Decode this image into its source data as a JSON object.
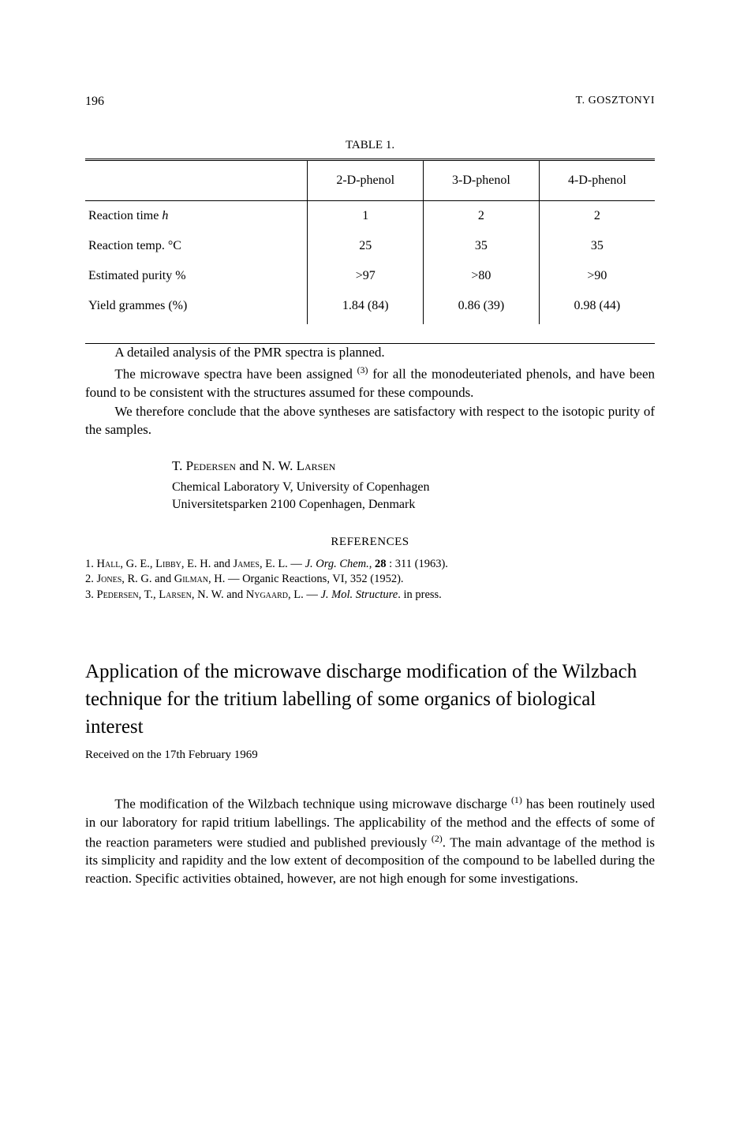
{
  "header": {
    "page_number": "196",
    "author": "T. GOSZTONYI"
  },
  "table": {
    "caption_prefix": "TABLE",
    "caption_number": "1.",
    "columns": [
      "",
      "2-D-phenol",
      "3-D-phenol",
      "4-D-phenol"
    ],
    "rows": [
      {
        "label_html": "Reaction time <span class='italic'>h</span>",
        "c1": "1",
        "c2": "2",
        "c3": "2"
      },
      {
        "label_html": "Reaction temp. °C",
        "c1": "25",
        "c2": "35",
        "c3": "35"
      },
      {
        "label_html": "Estimated purity %",
        "c1": ">97",
        "c2": ">80",
        "c3": ">90"
      },
      {
        "label_html": "Yield grammes (%)",
        "c1": "1.84 (84)",
        "c2": "0.86 (39)",
        "c3": "0.98 (44)"
      }
    ]
  },
  "body": {
    "p1": "A detailed analysis of the PMR spectra is planned.",
    "p2_html": "The microwave spectra have been assigned <sup>(3)</sup> for all the monodeuteriated phenols, and have been found to be consistent with the structures assumed for these compounds.",
    "p3": "We therefore conclude that the above syntheses are satisfactory with respect to the isotopic purity of the samples."
  },
  "authors": {
    "names_html": "T. <span class='sc'>Pedersen</span> and N. W. <span class='sc'>Larsen</span>",
    "affil1": "Chemical Laboratory V, University of Copenhagen",
    "affil2": "Universitetsparken 2100 Copenhagen, Denmark"
  },
  "references": {
    "heading": "REFERENCES",
    "items": [
      "1. <span class='sc'>Hall</span>, G. E., <span class='sc'>Libby</span>, E. H. and <span class='sc'>James</span>, E. L. — <span class='italic'>J. Org. Chem.</span>, <b>28</b> : 311 (1963).",
      "2. <span class='sc'>Jones</span>, R. G. and <span class='sc'>Gilman</span>, H. — Organic Reactions, VI, 352 (1952).",
      "3. <span class='sc'>Pedersen</span>, T., <span class='sc'>Larsen</span>, N. W. and <span class='sc'>Nygaard</span>, L. — <span class='italic'>J. Mol. Structure</span>. in press."
    ]
  },
  "article2": {
    "title": "Application of the microwave discharge modification of the Wilzbach technique for the tritium labelling of some organics of biological interest",
    "received": "Received on the 17th February 1969",
    "p1_html": "The modification of the Wilzbach technique using microwave discharge <sup>(1)</sup> has been routinely used in our laboratory for rapid tritium labellings. The applicability of the method and the effects of some of the reaction parameters were studied and published previously <sup>(2)</sup>. The main advantage of the method is its simplicity and rapidity and the low extent of decomposition of the compound to be labelled during the reaction. Specific activities obtained, however, are not high enough for some investigations."
  }
}
